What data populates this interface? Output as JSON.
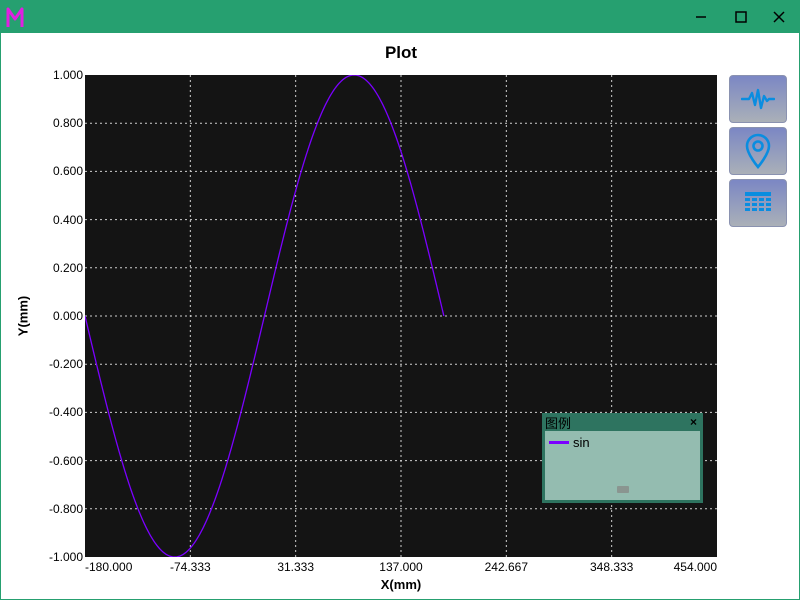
{
  "window": {
    "logo_text": "M",
    "minimize": "minimize",
    "maximize": "maximize",
    "close": "close"
  },
  "toolbar": {
    "buttons": [
      {
        "icon": "waveform-icon"
      },
      {
        "icon": "location-pin-icon"
      },
      {
        "icon": "grid-table-icon"
      }
    ]
  },
  "legend": {
    "title": "图例",
    "close_label": "×"
  },
  "colors": {
    "titlebar": "#26a070",
    "plot_bg": "#141414",
    "series": "#7b00ff"
  },
  "chart_data": {
    "type": "line",
    "title": "Plot",
    "xlabel": "X(mm)",
    "ylabel": "Y(mm)",
    "xlim": [
      -180.0,
      454.0
    ],
    "ylim": [
      -1.0,
      1.0
    ],
    "x_ticks": [
      "-180.000",
      "-74.333",
      "31.333",
      "137.000",
      "242.667",
      "348.333",
      "454.000"
    ],
    "y_ticks": [
      "1.000",
      "0.800",
      "0.600",
      "0.400",
      "0.200",
      "0.000",
      "-0.200",
      "-0.400",
      "-0.600",
      "-0.800",
      "-1.000"
    ],
    "grid": true,
    "legend_position": "bottom-right",
    "series": [
      {
        "name": "sin",
        "color": "#7b00ff",
        "x_range": [
          -180,
          180
        ],
        "function": "sin(x in degrees)"
      }
    ]
  }
}
